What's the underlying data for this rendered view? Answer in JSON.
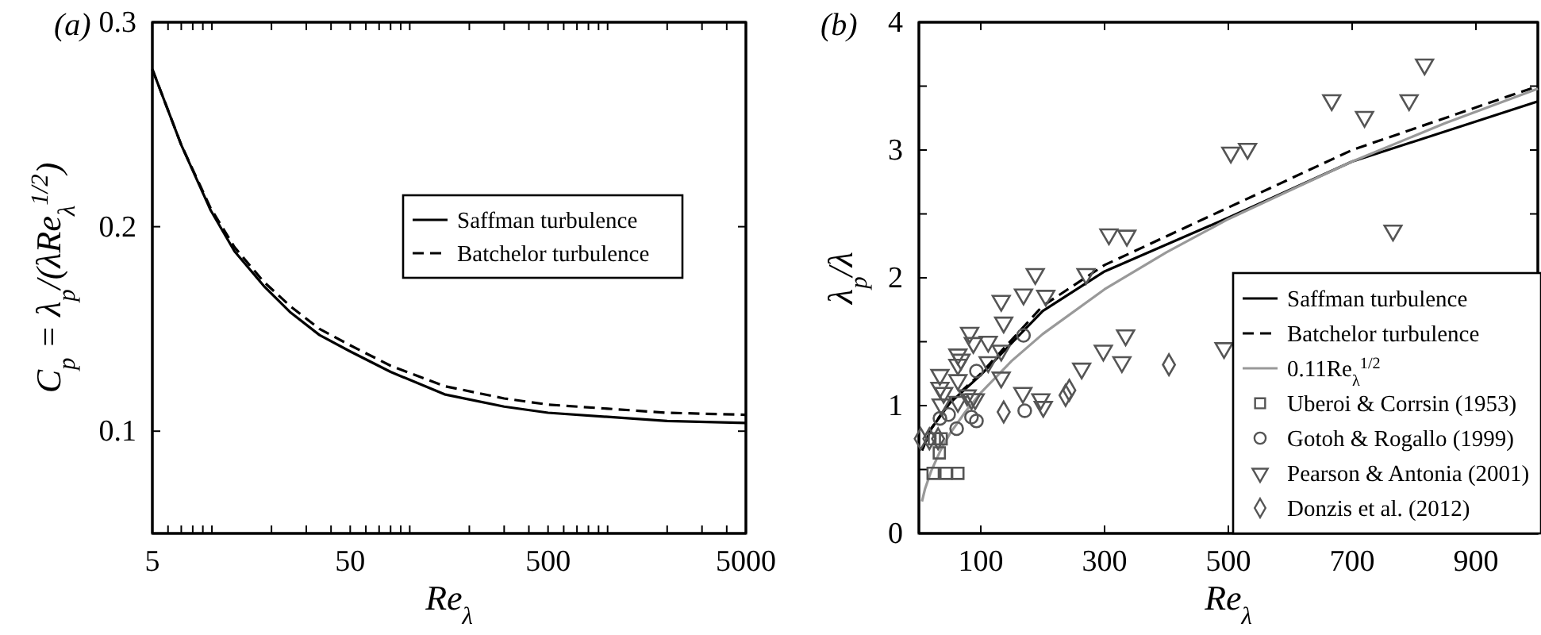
{
  "chart_data": [
    {
      "type": "line",
      "title": "(a)",
      "xlabel": "Re$_{λ}$",
      "ylabel": "C$_{p}$ = λ$_{p}$/(λRe$_{λ}$$^{1/2}$)",
      "log": "x",
      "xlim": [
        5,
        5000
      ],
      "ylim": [
        0.05,
        0.3
      ],
      "xticks": [
        5,
        {
          "value": 6,
          "label": null
        },
        {
          "value": 7,
          "label": null
        },
        {
          "value": 8,
          "label": null
        },
        {
          "value": 9,
          "label": null
        },
        {
          "value": 10,
          "label": null
        },
        {
          "value": 20,
          "label": null
        },
        {
          "value": 30,
          "label": null
        },
        {
          "value": 40,
          "label": null
        },
        50,
        {
          "value": 60,
          "label": null
        },
        {
          "value": 70,
          "label": null
        },
        {
          "value": 80,
          "label": null
        },
        {
          "value": 90,
          "label": null
        },
        {
          "value": 100,
          "label": null
        },
        {
          "value": 200,
          "label": null
        },
        {
          "value": 300,
          "label": null
        },
        {
          "value": 400,
          "label": null
        },
        500,
        {
          "value": 600,
          "label": null
        },
        {
          "value": 700,
          "label": null
        },
        {
          "value": 800,
          "label": null
        },
        {
          "value": 900,
          "label": null
        },
        {
          "value": 1000,
          "label": null
        },
        {
          "value": 2000,
          "label": null
        },
        {
          "value": 3000,
          "label": null
        },
        {
          "value": 4000,
          "label": null
        },
        5000
      ],
      "yticks": [
        0.1,
        0.2,
        0.3
      ],
      "legend": "right",
      "grid": false,
      "series": [
        {
          "name": "Saffman turbulence",
          "color": "#000000",
          "line_style": "solid",
          "x": [
            5,
            7,
            9.86,
            13,
            18.3,
            25,
            35,
            50,
            80,
            150,
            300,
            500,
            1000,
            2000,
            5000
          ],
          "values": [
            0.277,
            0.24,
            0.208,
            0.188,
            0.171,
            0.158,
            0.147,
            0.139,
            0.129,
            0.118,
            0.112,
            0.109,
            0.107,
            0.105,
            0.104
          ]
        },
        {
          "name": "Batchelor turbulence",
          "color": "#000000",
          "line_style": "dashed",
          "x": [
            5,
            7,
            9.86,
            13,
            18.3,
            25,
            35,
            50,
            80,
            150,
            300,
            500,
            1000,
            2000,
            5000
          ],
          "values": [
            0.277,
            0.24,
            0.209,
            0.19,
            0.173,
            0.161,
            0.15,
            0.142,
            0.132,
            0.122,
            0.116,
            0.113,
            0.111,
            0.109,
            0.108
          ]
        }
      ]
    },
    {
      "type": "line",
      "title": "(b)",
      "xlabel": "Re$_{λ}$",
      "ylabel": "λ$_{p}$/λ",
      "xlim": [
        0,
        1000
      ],
      "ylim": [
        0,
        4
      ],
      "xticks": [
        100,
        300,
        500,
        700,
        900
      ],
      "yticks": [
        0,
        {
          "value": 0.5,
          "label": null
        },
        1,
        {
          "value": 1.5,
          "label": null
        },
        2,
        {
          "value": 2.5,
          "label": null
        },
        3,
        {
          "value": 3.5,
          "label": null
        },
        4
      ],
      "legend": "bottom right",
      "grid": false,
      "series": [
        {
          "name": "Saffman turbulence",
          "color": "#000000",
          "line_style": "solid",
          "x": [
            5,
            20,
            50,
            100,
            200,
            300,
            500,
            700,
            1000
          ],
          "values": [
            0.65,
            0.82,
            1.02,
            1.24,
            1.74,
            2.05,
            2.47,
            2.91,
            3.38
          ]
        },
        {
          "name": "Batchelor turbulence",
          "color": "#000000",
          "line_style": "dashed",
          "x": [
            5,
            20,
            50,
            100,
            200,
            300,
            500,
            700,
            1000
          ],
          "values": [
            0.65,
            0.82,
            1.03,
            1.25,
            1.78,
            2.1,
            2.55,
            3.0,
            3.5
          ]
        },
        {
          "name": "0.11Re$_{λ}$$^{1/2}$",
          "color": "#999999",
          "line_style": "solid",
          "x": [
            5,
            10,
            20,
            35,
            50,
            75,
            100,
            150,
            200,
            300,
            400,
            500,
            700,
            850,
            1000
          ],
          "values": [
            0.25,
            0.35,
            0.49,
            0.65,
            0.78,
            0.95,
            1.1,
            1.35,
            1.56,
            1.91,
            2.2,
            2.46,
            2.91,
            3.21,
            3.48
          ]
        },
        {
          "name": "Uberoi & Corrsin (1953)",
          "type": "scatter",
          "marker": "square",
          "color": "#555555",
          "x": [
            23,
            44,
            63,
            33,
            36,
            25
          ],
          "values": [
            0.47,
            0.47,
            0.47,
            0.63,
            0.74,
            0.74
          ]
        },
        {
          "name": "Gotoh & Rogallo (1999)",
          "type": "scatter",
          "marker": "circle",
          "color": "#555555",
          "x": [
            34,
            61,
            93,
            93,
            169,
            171,
            85,
            48
          ],
          "values": [
            0.9,
            0.82,
            1.27,
            0.88,
            1.55,
            0.96,
            0.91,
            0.93
          ]
        },
        {
          "name": "Pearson & Antonia (2001)",
          "type": "scatter",
          "marker": "triangle",
          "color": "#555555",
          "x": [
            34,
            34,
            36,
            40,
            63,
            63,
            68,
            63,
            63,
            78,
            82,
            88,
            112,
            112,
            85,
            91,
            133,
            137,
            133,
            133,
            169,
            188,
            205,
            168,
            197,
            201,
            270,
            263,
            298,
            307,
            336,
            334,
            328,
            493,
            504,
            531,
            667,
            720,
            766,
            792,
            817
          ],
          "values": [
            1.24,
            1.14,
            1.01,
            1.1,
            1.4,
            1.32,
            1.36,
            1.2,
            1.03,
            1.08,
            1.57,
            1.49,
            1.5,
            1.34,
            1.05,
            1.05,
            1.82,
            1.65,
            1.43,
            1.22,
            1.87,
            2.03,
            1.86,
            1.1,
            1.05,
            0.99,
            2.03,
            1.29,
            1.43,
            2.34,
            2.33,
            1.55,
            1.34,
            1.45,
            2.98,
            3.01,
            3.39,
            3.26,
            2.37,
            3.39,
            3.67
          ]
        },
        {
          "name": "Donzis et al. (2012)",
          "type": "scatter",
          "marker": "diamond",
          "color": "#555555",
          "x": [
            3,
            17,
            31,
            137,
            237,
            243,
            404
          ],
          "values": [
            0.74,
            0.74,
            0.74,
            0.95,
            1.08,
            1.12,
            1.32
          ]
        }
      ]
    }
  ]
}
